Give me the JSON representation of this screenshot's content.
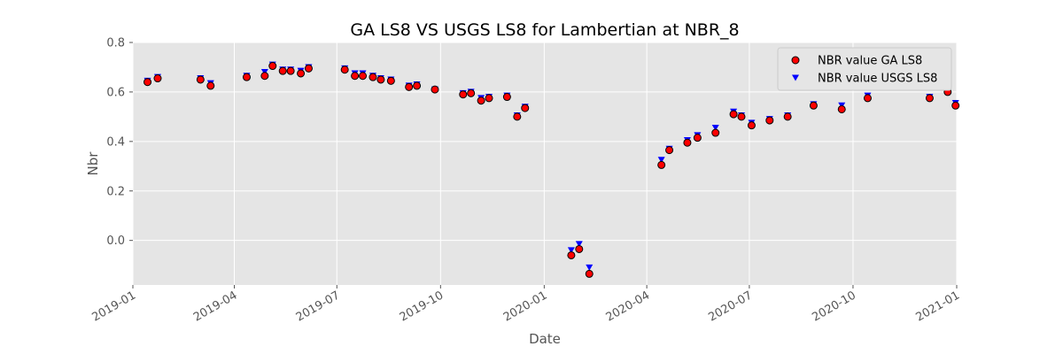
{
  "chart_data": {
    "type": "scatter",
    "title": "GA LS8 VS USGS LS8 for Lambertian at NBR_8",
    "xlabel": "Date",
    "ylabel": "Nbr",
    "x_axis_type": "date",
    "xlim": [
      "2019-01-01",
      "2021-01-01"
    ],
    "ylim": [
      -0.18,
      0.8
    ],
    "xticks": [
      "2019-01",
      "2019-04",
      "2019-07",
      "2019-10",
      "2020-01",
      "2020-04",
      "2020-07",
      "2020-10",
      "2021-01"
    ],
    "yticks": [
      "0.0",
      "0.2",
      "0.4",
      "0.6",
      "0.8"
    ],
    "ytick_values": [
      0.0,
      0.2,
      0.4,
      0.6,
      0.8
    ],
    "grid": true,
    "background": "#e5e5e5",
    "legend_position": "top-right",
    "series": [
      {
        "name": "NBR value GA LS8",
        "marker": "circle",
        "color": "#ff0000",
        "edge_color": "#000000",
        "x": [
          "2019-01-14",
          "2019-01-23",
          "2019-03-02",
          "2019-03-11",
          "2019-04-12",
          "2019-04-28",
          "2019-05-05",
          "2019-05-14",
          "2019-05-21",
          "2019-05-30",
          "2019-06-06",
          "2019-07-08",
          "2019-07-17",
          "2019-07-24",
          "2019-08-02",
          "2019-08-09",
          "2019-08-18",
          "2019-09-03",
          "2019-09-10",
          "2019-09-26",
          "2019-10-21",
          "2019-10-28",
          "2019-11-06",
          "2019-11-13",
          "2019-11-29",
          "2019-12-08",
          "2019-12-15",
          "2020-01-25",
          "2020-02-01",
          "2020-02-10",
          "2020-04-14",
          "2020-04-21",
          "2020-05-07",
          "2020-05-16",
          "2020-06-01",
          "2020-06-17",
          "2020-06-24",
          "2020-07-03",
          "2020-07-19",
          "2020-08-04",
          "2020-08-27",
          "2020-09-21",
          "2020-10-14",
          "2020-12-08",
          "2020-12-24",
          "2020-12-31"
        ],
        "y": [
          0.64,
          0.655,
          0.65,
          0.625,
          0.66,
          0.665,
          0.705,
          0.685,
          0.685,
          0.675,
          0.695,
          0.69,
          0.665,
          0.665,
          0.66,
          0.65,
          0.645,
          0.62,
          0.625,
          0.61,
          0.59,
          0.595,
          0.565,
          0.575,
          0.58,
          0.5,
          0.535,
          -0.06,
          -0.035,
          -0.135,
          0.305,
          0.365,
          0.395,
          0.415,
          0.435,
          0.51,
          0.5,
          0.465,
          0.485,
          0.5,
          0.545,
          0.53,
          0.575,
          0.575,
          0.6,
          0.545
        ]
      },
      {
        "name": "NBR value USGS LS8",
        "marker": "triangle-down",
        "color": "#0000ff",
        "x": [
          "2019-01-14",
          "2019-01-23",
          "2019-03-02",
          "2019-03-11",
          "2019-04-12",
          "2019-04-28",
          "2019-05-05",
          "2019-05-14",
          "2019-05-21",
          "2019-05-30",
          "2019-06-06",
          "2019-07-08",
          "2019-07-17",
          "2019-07-24",
          "2019-08-02",
          "2019-08-09",
          "2019-08-18",
          "2019-09-03",
          "2019-09-10",
          "2019-09-26",
          "2019-10-21",
          "2019-10-28",
          "2019-11-06",
          "2019-11-13",
          "2019-11-29",
          "2019-12-08",
          "2019-12-15",
          "2020-01-25",
          "2020-02-01",
          "2020-02-10",
          "2020-04-14",
          "2020-04-21",
          "2020-05-07",
          "2020-05-16",
          "2020-06-01",
          "2020-06-17",
          "2020-06-24",
          "2020-07-03",
          "2020-07-19",
          "2020-08-04",
          "2020-08-27",
          "2020-09-21",
          "2020-10-14",
          "2020-12-08",
          "2020-12-24",
          "2020-12-31"
        ],
        "y": [
          0.645,
          0.66,
          0.655,
          0.635,
          0.665,
          0.68,
          0.71,
          0.69,
          0.69,
          0.685,
          0.7,
          0.695,
          0.675,
          0.675,
          0.665,
          0.655,
          0.65,
          0.625,
          0.63,
          0.61,
          0.595,
          0.6,
          0.575,
          0.58,
          0.585,
          0.505,
          0.54,
          -0.04,
          -0.015,
          -0.11,
          0.325,
          0.37,
          0.405,
          0.425,
          0.455,
          0.52,
          0.505,
          0.475,
          0.49,
          0.505,
          0.55,
          0.545,
          0.585,
          0.58,
          0.62,
          0.555
        ]
      }
    ]
  }
}
